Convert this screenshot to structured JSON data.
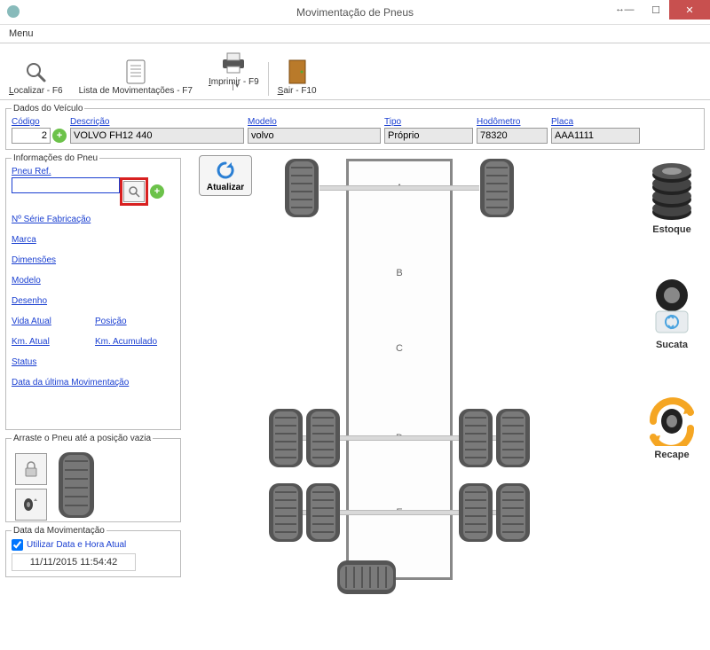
{
  "window": {
    "title": "Movimentação de Pneus"
  },
  "menu": {
    "label": "Menu"
  },
  "toolbar": {
    "localizar": "Localizar - F6",
    "lista": "Lista de Movimentações - F7",
    "imprimir": "Imprimir - F9",
    "sair": "Sair - F10"
  },
  "dados_veiculo": {
    "legend": "Dados do Veículo",
    "codigo_label": "Código",
    "codigo": "2",
    "descricao_label": "Descrição",
    "descricao": "VOLVO FH12 440",
    "modelo_label": "Modelo",
    "modelo": "volvo",
    "tipo_label": "Tipo",
    "tipo": "Próprio",
    "hodometro_label": "Hodômetro",
    "hodometro": "78320",
    "placa_label": "Placa",
    "placa": "AAA1111"
  },
  "info_pneu": {
    "legend": "Informações do Pneu",
    "pneu_ref_label": "Pneu Ref.",
    "pneu_ref": "",
    "atualizar": "Atualizar",
    "n_serie": "Nº Série Fabricação",
    "marca": "Marca",
    "dimensoes": "Dimensões",
    "modelo": "Modelo",
    "desenho": "Desenho",
    "vida_atual": "Vida Atual",
    "posicao": "Posição",
    "km_atual": "Km. Atual",
    "km_acumulado": "Km. Acumulado",
    "status": "Status",
    "data_ult": "Data da última Movimentação"
  },
  "drag": {
    "legend": "Arraste o Pneu até a posição vazia"
  },
  "data_mov": {
    "legend": "Data da Movimentação",
    "check_label": "Utilizar Data e Hora Atual",
    "value": "11/11/2015   11:54:42"
  },
  "axles": {
    "a": "A",
    "b": "B",
    "c": "C",
    "d": "D",
    "e": "E"
  },
  "right": {
    "estoque": "Estoque",
    "sucata": "Sucata",
    "recape": "Recape"
  },
  "style": {
    "accent_link": "#1a3fd1",
    "highlight_red": "#d82020",
    "green_add": "#6cc24a",
    "close_red": "#c8504f"
  }
}
